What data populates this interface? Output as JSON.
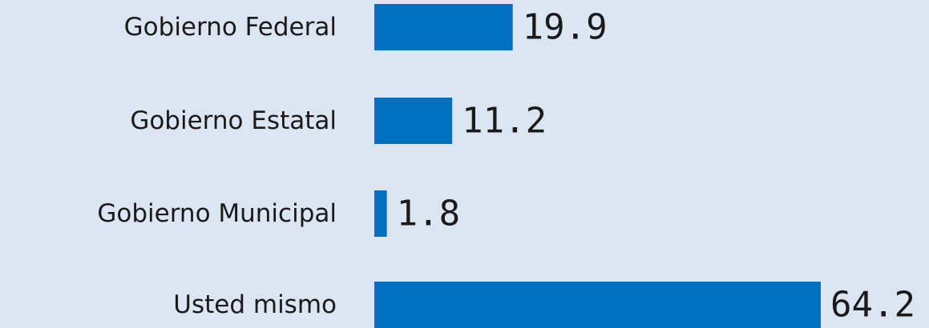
{
  "chart_data": {
    "type": "bar",
    "orientation": "horizontal",
    "categories": [
      "Gobierno Federal",
      "Gobierno Estatal",
      "Gobierno Municipal",
      "Usted mismo"
    ],
    "values": [
      19.9,
      11.2,
      1.8,
      64.2
    ],
    "value_labels": [
      "19.9",
      "11.2",
      "1.8",
      "64.2"
    ],
    "title": "",
    "xlabel": "",
    "ylabel": "",
    "xlim": [
      0,
      64.2
    ],
    "grid": false,
    "legend": "none"
  },
  "colors": {
    "bar": "#0070c0",
    "background": "#dce6f2",
    "text": "#1a1a1a"
  }
}
